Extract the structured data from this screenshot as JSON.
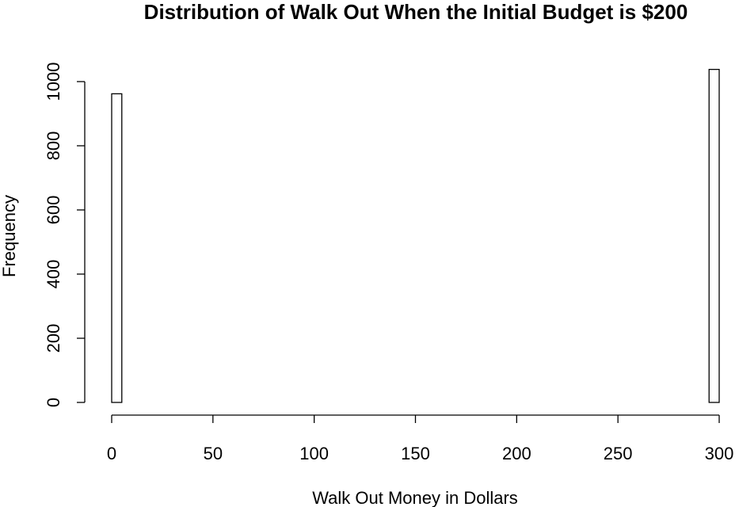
{
  "chart_data": {
    "type": "bar",
    "title": "Distribution of Walk Out When the Initial Budget is $200",
    "xlabel": "Walk Out Money in Dollars",
    "ylabel": "Frequency",
    "xlim": [
      0,
      300
    ],
    "ylim": [
      0,
      1000
    ],
    "x_ticks": [
      0,
      50,
      100,
      150,
      200,
      250,
      300
    ],
    "y_ticks": [
      0,
      200,
      400,
      600,
      800,
      1000
    ],
    "bin_width": 5,
    "bins": [
      {
        "start": 0,
        "end": 5,
        "value": 962
      },
      {
        "start": 5,
        "end": 295,
        "value": 0
      },
      {
        "start": 295,
        "end": 300,
        "value": 1038
      }
    ]
  }
}
